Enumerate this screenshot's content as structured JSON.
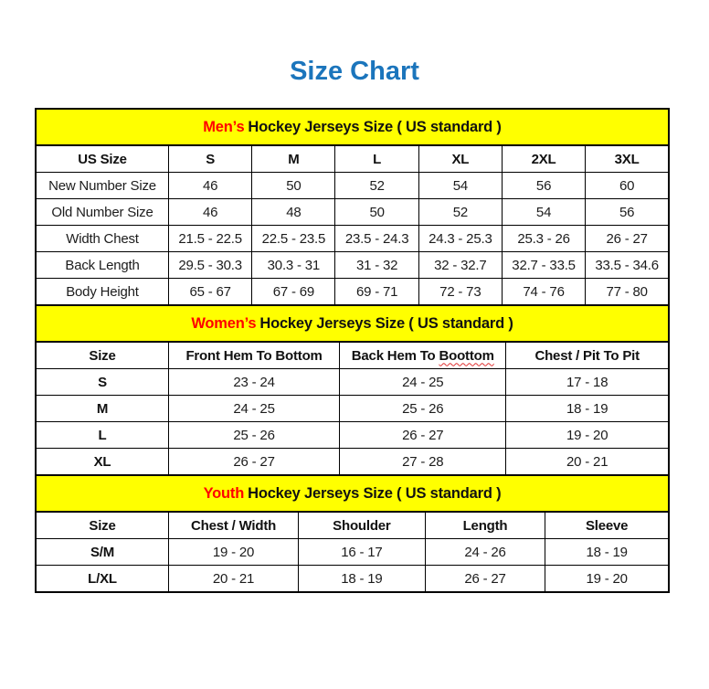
{
  "page": {
    "title": "Size Chart"
  },
  "colors": {
    "title_blue": "#1B75BC",
    "band_yellow": "#FFFF00",
    "accent_red": "#FF0000",
    "squiggle_red": "#E03030",
    "border_black": "#000000"
  },
  "tables": [
    {
      "name": "mens",
      "band": {
        "highlight": "Men’s",
        "rest": "Hockey Jerseys Size ( US standard )"
      },
      "header": [
        "US Size",
        "S",
        "M",
        "L",
        "XL",
        "2XL",
        "3XL"
      ],
      "rows": [
        [
          "New Number Size",
          "46",
          "50",
          "52",
          "54",
          "56",
          "60"
        ],
        [
          "Old Number Size",
          "46",
          "48",
          "50",
          "52",
          "54",
          "56"
        ],
        [
          "Width Chest",
          "21.5 - 22.5",
          "22.5 - 23.5",
          "23.5 - 24.3",
          "24.3 - 25.3",
          "25.3 - 26",
          "26 - 27"
        ],
        [
          "Back Length",
          "29.5 - 30.3",
          "30.3 - 31",
          "31 - 32",
          "32 - 32.7",
          "32.7 - 33.5",
          "33.5 - 34.6"
        ],
        [
          "Body Height",
          "65 - 67",
          "67 - 69",
          "69 - 71",
          "72 - 73",
          "74 - 76",
          "77 - 80"
        ]
      ]
    },
    {
      "name": "womens",
      "band": {
        "highlight": "Women’s",
        "rest": "Hockey Jerseys Size ( US standard )"
      },
      "header": [
        "Size",
        "Front Hem To Bottom",
        {
          "prefix": "Back Hem To ",
          "squiggle": "Boottom"
        },
        "Chest / Pit To Pit"
      ],
      "rows": [
        [
          "S",
          "23 - 24",
          "24 - 25",
          "17 - 18"
        ],
        [
          "M",
          "24 - 25",
          "25 - 26",
          "18 - 19"
        ],
        [
          "L",
          "25 - 26",
          "26 - 27",
          "19 - 20"
        ],
        [
          "XL",
          "26 - 27",
          "27 - 28",
          "20 - 21"
        ]
      ]
    },
    {
      "name": "youth",
      "band": {
        "highlight": "Youth",
        "rest": "Hockey Jerseys Size ( US standard )"
      },
      "header": [
        "Size",
        "Chest / Width",
        "Shoulder",
        "Length",
        "Sleeve"
      ],
      "rows": [
        [
          "S/M",
          "19 - 20",
          "16 - 17",
          "24 - 26",
          "18 - 19"
        ],
        [
          "L/XL",
          "20 - 21",
          "18 - 19",
          "26 - 27",
          "19 - 20"
        ]
      ]
    }
  ],
  "chart_data": [
    {
      "type": "table",
      "title": "Men’s Hockey Jerseys Size ( US standard )",
      "columns": [
        "US Size",
        "S",
        "M",
        "L",
        "XL",
        "2XL",
        "3XL"
      ],
      "rows": [
        [
          "New Number Size",
          "46",
          "50",
          "52",
          "54",
          "56",
          "60"
        ],
        [
          "Old Number Size",
          "46",
          "48",
          "50",
          "52",
          "54",
          "56"
        ],
        [
          "Width Chest",
          "21.5 - 22.5",
          "22.5 - 23.5",
          "23.5 - 24.3",
          "24.3 - 25.3",
          "25.3 - 26",
          "26 - 27"
        ],
        [
          "Back Length",
          "29.5 - 30.3",
          "30.3 - 31",
          "31 - 32",
          "32 - 32.7",
          "32.7 - 33.5",
          "33.5 - 34.6"
        ],
        [
          "Body Height",
          "65 - 67",
          "67 - 69",
          "69 - 71",
          "72 - 73",
          "74 - 76",
          "77 - 80"
        ]
      ]
    },
    {
      "type": "table",
      "title": "Women’s Hockey Jerseys Size ( US standard )",
      "columns": [
        "Size",
        "Front Hem To Bottom",
        "Back Hem To Boottom",
        "Chest / Pit To Pit"
      ],
      "rows": [
        [
          "S",
          "23 - 24",
          "24 - 25",
          "17 - 18"
        ],
        [
          "M",
          "24 - 25",
          "25 - 26",
          "18 - 19"
        ],
        [
          "L",
          "25 - 26",
          "26 - 27",
          "19 - 20"
        ],
        [
          "XL",
          "26 - 27",
          "27 - 28",
          "20 - 21"
        ]
      ]
    },
    {
      "type": "table",
      "title": "Youth Hockey Jerseys Size ( US standard )",
      "columns": [
        "Size",
        "Chest / Width",
        "Shoulder",
        "Length",
        "Sleeve"
      ],
      "rows": [
        [
          "S/M",
          "19 - 20",
          "16 - 17",
          "24 - 26",
          "18 - 19"
        ],
        [
          "L/XL",
          "20 - 21",
          "18 - 19",
          "26 - 27",
          "19 - 20"
        ]
      ]
    }
  ]
}
